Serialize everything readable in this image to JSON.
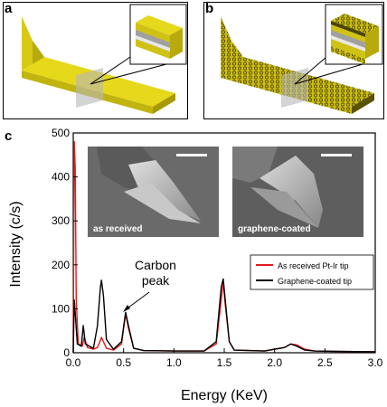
{
  "figure": {
    "panel_a_letter": "a",
    "panel_b_letter": "b",
    "panel_c_letter": "c"
  },
  "colors": {
    "gold": "#e6d81a",
    "gold_dark": "#b8a90c",
    "as_received": "#e41a1c",
    "graphene_coated": "#000000",
    "membrane": "#b8b8b8"
  },
  "sem_images": {
    "left_label": "as received",
    "right_label": "graphene-coated"
  },
  "chart_data": {
    "type": "line",
    "xlabel": "Energy (KeV)",
    "ylabel": "Intensity (c/s)",
    "xlim": [
      0.0,
      3.0
    ],
    "ylim": [
      0,
      500
    ],
    "xticks": [
      "0.0",
      "0.5",
      "1.0",
      "1.5",
      "2.0",
      "2.5",
      "3.0"
    ],
    "yticks": [
      "0",
      "100",
      "200",
      "300",
      "400",
      "500"
    ],
    "annotation": {
      "line1": "Carbon",
      "line2": "peak"
    },
    "legend_position": "center-right",
    "series": [
      {
        "name": "As received Pt-Ir tip",
        "color": "#e41a1c",
        "points": [
          [
            0.0,
            0
          ],
          [
            0.01,
            480
          ],
          [
            0.02,
            420
          ],
          [
            0.03,
            120
          ],
          [
            0.05,
            20
          ],
          [
            0.09,
            15
          ],
          [
            0.11,
            35
          ],
          [
            0.14,
            12
          ],
          [
            0.2,
            8
          ],
          [
            0.24,
            12
          ],
          [
            0.27,
            28
          ],
          [
            0.28,
            35
          ],
          [
            0.3,
            25
          ],
          [
            0.33,
            10
          ],
          [
            0.4,
            6
          ],
          [
            0.48,
            20
          ],
          [
            0.52,
            88
          ],
          [
            0.55,
            55
          ],
          [
            0.6,
            10
          ],
          [
            0.7,
            5
          ],
          [
            1.0,
            4
          ],
          [
            1.3,
            4
          ],
          [
            1.42,
            20
          ],
          [
            1.47,
            120
          ],
          [
            1.49,
            160
          ],
          [
            1.51,
            110
          ],
          [
            1.55,
            25
          ],
          [
            1.6,
            6
          ],
          [
            1.9,
            4
          ],
          [
            2.1,
            12
          ],
          [
            2.16,
            20
          ],
          [
            2.22,
            18
          ],
          [
            2.3,
            8
          ],
          [
            2.4,
            4
          ],
          [
            2.6,
            3
          ],
          [
            3.0,
            2
          ]
        ]
      },
      {
        "name": "Graphene-coated tip",
        "color": "#000000",
        "points": [
          [
            0.0,
            0
          ],
          [
            0.01,
            120
          ],
          [
            0.02,
            90
          ],
          [
            0.04,
            20
          ],
          [
            0.08,
            15
          ],
          [
            0.1,
            62
          ],
          [
            0.12,
            20
          ],
          [
            0.2,
            10
          ],
          [
            0.24,
            60
          ],
          [
            0.27,
            150
          ],
          [
            0.28,
            165
          ],
          [
            0.3,
            130
          ],
          [
            0.33,
            30
          ],
          [
            0.4,
            8
          ],
          [
            0.48,
            25
          ],
          [
            0.52,
            92
          ],
          [
            0.55,
            60
          ],
          [
            0.6,
            10
          ],
          [
            0.7,
            5
          ],
          [
            1.0,
            4
          ],
          [
            1.3,
            4
          ],
          [
            1.42,
            25
          ],
          [
            1.47,
            150
          ],
          [
            1.49,
            168
          ],
          [
            1.51,
            120
          ],
          [
            1.55,
            25
          ],
          [
            1.6,
            6
          ],
          [
            1.9,
            4
          ],
          [
            2.1,
            12
          ],
          [
            2.16,
            20
          ],
          [
            2.22,
            15
          ],
          [
            2.3,
            6
          ],
          [
            2.4,
            4
          ],
          [
            2.6,
            3
          ],
          [
            3.0,
            2
          ]
        ]
      }
    ]
  }
}
